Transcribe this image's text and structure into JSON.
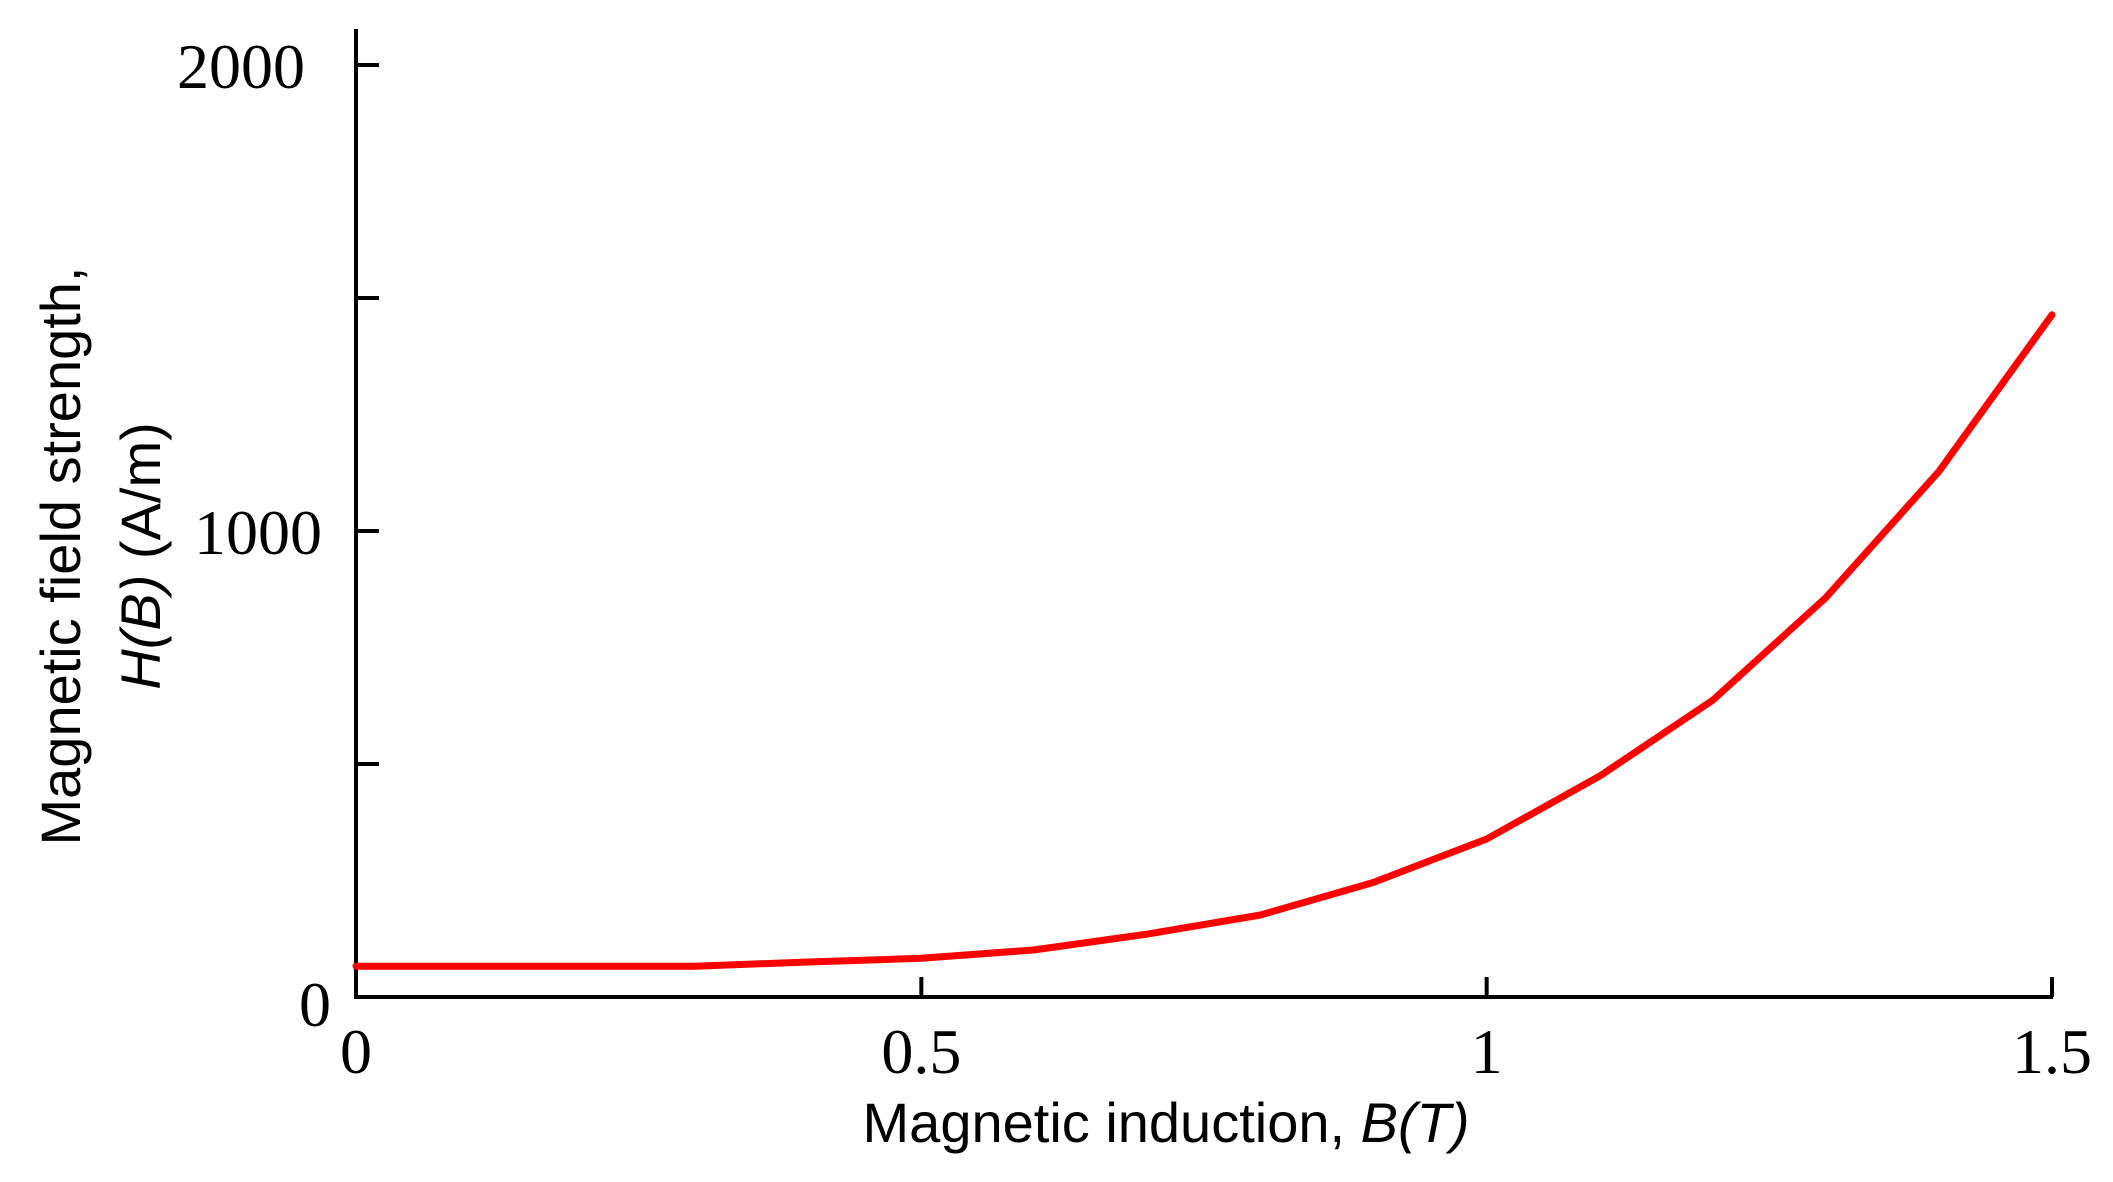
{
  "chart_data": {
    "type": "line",
    "title": "",
    "xlabel": "Magnetic induction, B(T)",
    "xlabel_parts": {
      "plain": "Magnetic induction, ",
      "italic": "B(T)"
    },
    "ylabel": "Magnetic field strength, H(B) (A/m)",
    "ylabel_lines": {
      "line1": "Magnetic field strength,",
      "line2_italic": "H(B)",
      "line2_plain": " (A/m)"
    },
    "xlim": [
      0,
      1.5
    ],
    "ylim": [
      0,
      2000
    ],
    "x_ticks": [
      {
        "value": 0,
        "label": "0"
      },
      {
        "value": 0.5,
        "label": "0.5"
      },
      {
        "value": 1,
        "label": "1"
      },
      {
        "value": 1.5,
        "label": "1.5"
      }
    ],
    "y_ticks": [
      {
        "value": 0,
        "label": "0"
      },
      {
        "value": 500,
        "label": ""
      },
      {
        "value": 1000,
        "label": "1000"
      },
      {
        "value": 1500,
        "label": ""
      },
      {
        "value": 2000,
        "label": "2000"
      }
    ],
    "grid": false,
    "legend": null,
    "series": [
      {
        "name": "H(B)",
        "color": "#ff0000",
        "x": [
          0,
          0.1,
          0.2,
          0.3,
          0.4,
          0.5,
          0.6,
          0.7,
          0.8,
          0.9,
          1.0,
          1.1,
          1.2,
          1.3,
          1.4,
          1.5
        ],
        "y": [
          66,
          66,
          66,
          66,
          75,
          83,
          101,
          135,
          176,
          246,
          339,
          474,
          637,
          857,
          1128,
          1464
        ]
      }
    ]
  }
}
